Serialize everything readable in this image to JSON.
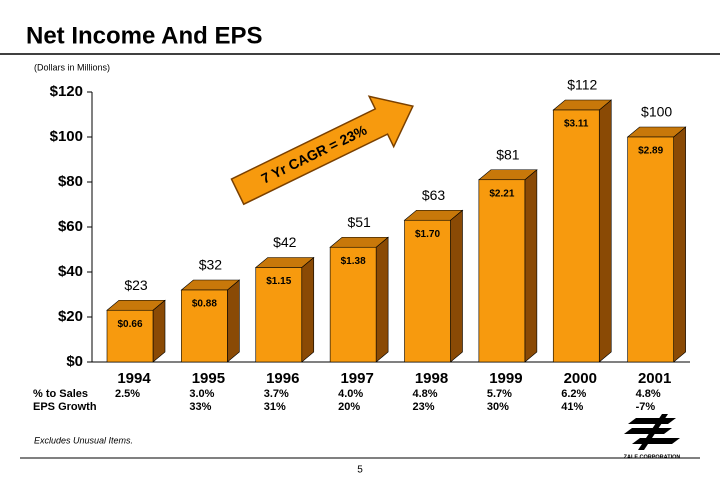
{
  "chart_data": {
    "type": "bar3d",
    "title": "Net Income And EPS",
    "subtitle": "(Dollars in Millions)",
    "annotation": "7 Yr CAGR = 23%",
    "footnote": "Excludes Unusual Items.",
    "page_number": "5",
    "logo_text": "ZALE CORPORATION",
    "categories": [
      "1994",
      "1995",
      "1996",
      "1997",
      "1998",
      "1999",
      "2000",
      "2001"
    ],
    "values": [
      23,
      32,
      42,
      51,
      63,
      81,
      112,
      100
    ],
    "value_labels": [
      "$23",
      "$32",
      "$42",
      "$51",
      "$63",
      "$81",
      "$112",
      "$100"
    ],
    "eps_labels": [
      "$0.66",
      "$0.88",
      "$1.15",
      "$1.38",
      "$1.70",
      "$2.21",
      "$3.11",
      "$2.89"
    ],
    "color": "#f79a0e",
    "side_color": "#8a4a05",
    "top_color": "#c8780a",
    "ylim": [
      0,
      120
    ],
    "yticks": [
      {
        "value": 0,
        "label": "$0"
      },
      {
        "value": 20,
        "label": "$20"
      },
      {
        "value": 40,
        "label": "$40"
      },
      {
        "value": 60,
        "label": "$60"
      },
      {
        "value": 80,
        "label": "$80"
      },
      {
        "value": 100,
        "label": "$100"
      },
      {
        "value": 120,
        "label": "$120"
      }
    ],
    "rows": [
      {
        "label": "% to Sales",
        "values": [
          "2.5%",
          "3.0%",
          "3.7%",
          "4.0%",
          "4.8%",
          "5.7%",
          "6.2%",
          "4.8%"
        ]
      },
      {
        "label": "EPS Growth",
        "values": [
          null,
          "33%",
          "31%",
          "20%",
          "23%",
          "30%",
          "41%",
          "-7%"
        ]
      }
    ]
  }
}
